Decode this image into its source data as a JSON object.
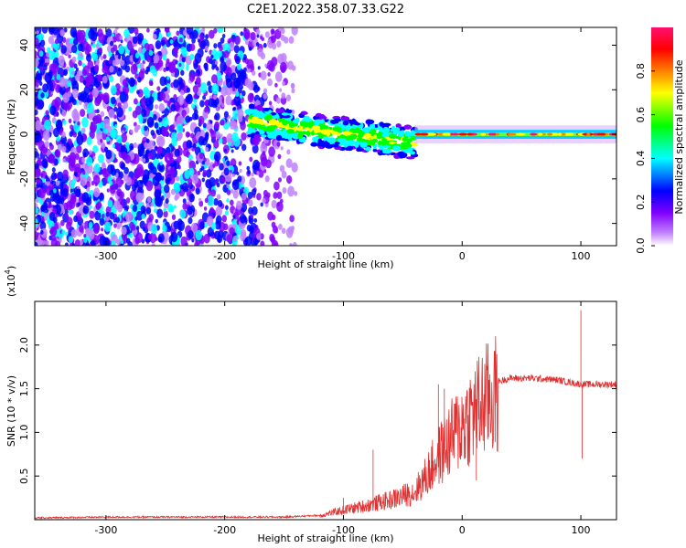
{
  "title": "C2E1.2022.358.07.33.G22",
  "chart_data": [
    {
      "type": "heatmap",
      "xlabel": "Height of straight line (km)",
      "ylabel": "Frequency (Hz)",
      "xlim": [
        -360,
        130
      ],
      "ylim": [
        -50,
        48
      ],
      "x_ticks": [
        -300,
        -200,
        -100,
        0,
        100
      ],
      "y_ticks": [
        -40,
        -20,
        0,
        20,
        40
      ],
      "colorbar": {
        "label": "Normalized spectral amplitude",
        "range": [
          0.0,
          1.0
        ],
        "ticks": [
          0.0,
          0.2,
          0.4,
          0.6,
          0.8
        ],
        "colors": [
          "#ffffff",
          "#a000ff",
          "#0000ff",
          "#00ffff",
          "#00ff00",
          "#ffff00",
          "#ff8000",
          "#ff0000",
          "#ff1070"
        ]
      },
      "regions": [
        {
          "x_from": -360,
          "x_to": -140,
          "description": "noise",
          "amplitude": [
            0.0,
            0.3
          ]
        },
        {
          "x_from": -180,
          "x_to": -40,
          "center_freq_start": 6,
          "center_freq_end": -4,
          "amplitude": [
            0.3,
            0.6
          ]
        },
        {
          "x_from": -40,
          "x_to": 130,
          "center_freq": 0,
          "amplitude": [
            0.6,
            1.0
          ]
        }
      ]
    },
    {
      "type": "line",
      "xlabel": "Height of straight line (km)",
      "ylabel": "SNR (10 * v/v)",
      "y_multiplier": "(x10^4)",
      "multiplier_base": "(x10",
      "multiplier_exp": "4",
      "multiplier_close": ")",
      "xlim": [
        -360,
        130
      ],
      "ylim": [
        0,
        2.5
      ],
      "x_ticks": [
        -300,
        -200,
        -100,
        0,
        100
      ],
      "y_ticks": [
        0.5,
        1.0,
        1.5,
        2.0
      ],
      "color": "#e03030",
      "series": [
        {
          "x": [
            -360,
            -300,
            -250,
            -200,
            -150,
            -120,
            -100,
            -80,
            -60,
            -40,
            -30,
            -20,
            -10,
            0,
            10,
            20,
            30,
            40,
            60,
            80,
            100,
            110,
            130
          ],
          "y": [
            0.02,
            0.03,
            0.03,
            0.03,
            0.03,
            0.05,
            0.12,
            0.18,
            0.25,
            0.35,
            0.55,
            0.8,
            1.0,
            1.2,
            1.35,
            1.5,
            1.58,
            1.62,
            1.62,
            1.6,
            1.55,
            1.55,
            1.55
          ]
        }
      ],
      "spikes": [
        {
          "x": -100,
          "y": 0.25
        },
        {
          "x": -75,
          "y": 0.8
        },
        {
          "x": -20,
          "y": 1.55
        },
        {
          "x": -15,
          "y": 1.5
        },
        {
          "x": 12,
          "y": 0.45
        },
        {
          "x": 100,
          "y": 2.4
        },
        {
          "x": 101,
          "y": 0.7
        }
      ]
    }
  ]
}
